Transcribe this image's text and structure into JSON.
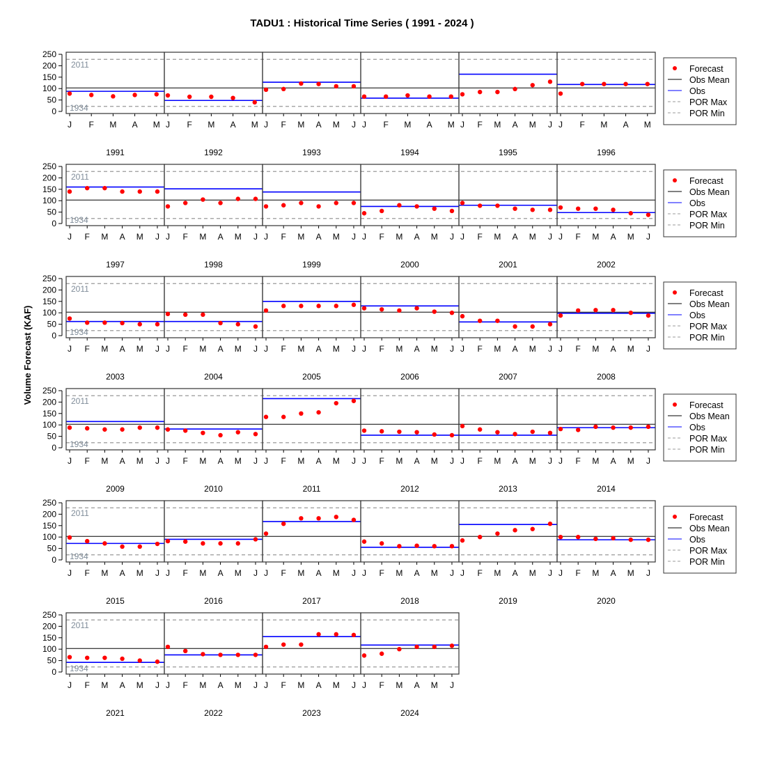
{
  "chart_data": {
    "type": "scatter",
    "title": "TADU1 : Historical Time Series ( 1991 - 2024 )",
    "ylabel": "Volume Forecast (KAF)",
    "xlabel": "",
    "ylim": [
      0,
      250
    ],
    "yticks": [
      0,
      50,
      100,
      150,
      200,
      250
    ],
    "obs_mean": 103,
    "por_max": 228,
    "por_min": 22,
    "por_max_label": "2011",
    "por_min_label": "1934",
    "colors": {
      "forecast": "#ff0000",
      "obs": "#0000ff",
      "obs_mean": "#000000",
      "por": "#999999"
    },
    "legend": {
      "placement": "right",
      "entries": [
        "Forecast",
        "Obs Mean",
        "Obs",
        "POR Max",
        "POR Min"
      ]
    },
    "years": [
      {
        "year": "1991",
        "months": [
          "J",
          "F",
          "M",
          "A",
          "M"
        ],
        "forecast": [
          78,
          72,
          66,
          72,
          75
        ],
        "obs": 88
      },
      {
        "year": "1992",
        "months": [
          "J",
          "F",
          "M",
          "A",
          "M"
        ],
        "forecast": [
          70,
          64,
          64,
          59,
          40
        ],
        "obs": 48
      },
      {
        "year": "1993",
        "months": [
          "J",
          "F",
          "M",
          "A",
          "M",
          "J"
        ],
        "forecast": [
          95,
          98,
          122,
          120,
          110,
          110
        ],
        "obs": 128
      },
      {
        "year": "1994",
        "months": [
          "J",
          "F",
          "M",
          "A",
          "M"
        ],
        "forecast": [
          65,
          65,
          70,
          65,
          65
        ],
        "obs": 58
      },
      {
        "year": "1995",
        "months": [
          "J",
          "F",
          "M",
          "A",
          "M",
          "J"
        ],
        "forecast": [
          75,
          85,
          85,
          98,
          115,
          130
        ],
        "obs": 163
      },
      {
        "year": "1996",
        "months": [
          "J",
          "F",
          "M",
          "A",
          "M"
        ],
        "forecast": [
          78,
          120,
          120,
          120,
          120
        ],
        "obs": 118
      },
      {
        "year": "1997",
        "months": [
          "J",
          "F",
          "M",
          "A",
          "M",
          "J"
        ],
        "forecast": [
          140,
          155,
          155,
          140,
          140,
          140
        ],
        "obs": 160
      },
      {
        "year": "1998",
        "months": [
          "J",
          "F",
          "M",
          "A",
          "M",
          "J"
        ],
        "forecast": [
          75,
          90,
          105,
          90,
          108,
          108
        ],
        "obs": 152
      },
      {
        "year": "1999",
        "months": [
          "J",
          "F",
          "M",
          "A",
          "M",
          "J"
        ],
        "forecast": [
          75,
          80,
          90,
          75,
          90,
          90
        ],
        "obs": 138
      },
      {
        "year": "2000",
        "months": [
          "J",
          "F",
          "M",
          "A",
          "M",
          "J"
        ],
        "forecast": [
          45,
          55,
          80,
          75,
          65,
          55
        ],
        "obs": 75
      },
      {
        "year": "2001",
        "months": [
          "J",
          "F",
          "M",
          "A",
          "M",
          "J"
        ],
        "forecast": [
          90,
          78,
          78,
          65,
          60,
          60
        ],
        "obs": 80
      },
      {
        "year": "2002",
        "months": [
          "J",
          "F",
          "M",
          "A",
          "M",
          "J"
        ],
        "forecast": [
          70,
          65,
          65,
          60,
          45,
          38
        ],
        "obs": 48
      },
      {
        "year": "2003",
        "months": [
          "J",
          "F",
          "M",
          "A",
          "M",
          "J"
        ],
        "forecast": [
          75,
          57,
          57,
          55,
          50,
          50
        ],
        "obs": 62
      },
      {
        "year": "2004",
        "months": [
          "J",
          "F",
          "M",
          "A",
          "M",
          "J"
        ],
        "forecast": [
          95,
          92,
          92,
          55,
          50,
          40
        ],
        "obs": 62
      },
      {
        "year": "2005",
        "months": [
          "J",
          "F",
          "M",
          "A",
          "M",
          "J"
        ],
        "forecast": [
          110,
          130,
          130,
          130,
          130,
          135
        ],
        "obs": 150
      },
      {
        "year": "2006",
        "months": [
          "J",
          "F",
          "M",
          "A",
          "M",
          "J"
        ],
        "forecast": [
          120,
          115,
          110,
          120,
          105,
          100
        ],
        "obs": 130
      },
      {
        "year": "2007",
        "months": [
          "J",
          "F",
          "M",
          "A",
          "M",
          "J"
        ],
        "forecast": [
          85,
          65,
          65,
          40,
          40,
          50
        ],
        "obs": 60
      },
      {
        "year": "2008",
        "months": [
          "J",
          "F",
          "M",
          "A",
          "M",
          "J"
        ],
        "forecast": [
          88,
          110,
          112,
          112,
          100,
          88
        ],
        "obs": 98
      },
      {
        "year": "2009",
        "months": [
          "J",
          "F",
          "M",
          "A",
          "M",
          "J"
        ],
        "forecast": [
          88,
          85,
          80,
          80,
          88,
          88
        ],
        "obs": 115
      },
      {
        "year": "2010",
        "months": [
          "J",
          "F",
          "M",
          "A",
          "M",
          "J"
        ],
        "forecast": [
          80,
          75,
          65,
          55,
          68,
          60
        ],
        "obs": 82
      },
      {
        "year": "2011",
        "months": [
          "J",
          "F",
          "M",
          "A",
          "M",
          "J"
        ],
        "forecast": [
          135,
          135,
          150,
          155,
          195,
          205
        ],
        "obs": 215
      },
      {
        "year": "2012",
        "months": [
          "J",
          "F",
          "M",
          "A",
          "M",
          "J"
        ],
        "forecast": [
          75,
          72,
          70,
          68,
          58,
          55
        ],
        "obs": 55
      },
      {
        "year": "2013",
        "months": [
          "J",
          "F",
          "M",
          "A",
          "M",
          "J"
        ],
        "forecast": [
          95,
          80,
          68,
          60,
          70,
          65
        ],
        "obs": 55
      },
      {
        "year": "2014",
        "months": [
          "J",
          "F",
          "M",
          "A",
          "M",
          "J"
        ],
        "forecast": [
          82,
          78,
          92,
          88,
          88,
          92
        ],
        "obs": 88
      },
      {
        "year": "2015",
        "months": [
          "J",
          "F",
          "M",
          "A",
          "M",
          "J"
        ],
        "forecast": [
          98,
          82,
          72,
          58,
          58,
          70
        ],
        "obs": 72
      },
      {
        "year": "2016",
        "months": [
          "J",
          "F",
          "M",
          "A",
          "M",
          "J"
        ],
        "forecast": [
          82,
          80,
          72,
          72,
          72,
          90
        ],
        "obs": 90
      },
      {
        "year": "2017",
        "months": [
          "J",
          "F",
          "M",
          "A",
          "M",
          "J"
        ],
        "forecast": [
          115,
          158,
          182,
          182,
          188,
          175
        ],
        "obs": 168
      },
      {
        "year": "2018",
        "months": [
          "J",
          "F",
          "M",
          "A",
          "M",
          "J"
        ],
        "forecast": [
          80,
          72,
          60,
          62,
          60,
          60
        ],
        "obs": 55
      },
      {
        "year": "2019",
        "months": [
          "J",
          "F",
          "M",
          "A",
          "M",
          "J"
        ],
        "forecast": [
          85,
          100,
          115,
          130,
          135,
          158
        ],
        "obs": 155
      },
      {
        "year": "2020",
        "months": [
          "J",
          "F",
          "M",
          "A",
          "M",
          "J"
        ],
        "forecast": [
          100,
          100,
          92,
          95,
          88,
          88
        ],
        "obs": 88
      },
      {
        "year": "2021",
        "months": [
          "J",
          "F",
          "M",
          "A",
          "M",
          "J"
        ],
        "forecast": [
          65,
          62,
          62,
          58,
          50,
          45
        ],
        "obs": 42
      },
      {
        "year": "2022",
        "months": [
          "J",
          "F",
          "M",
          "A",
          "M",
          "J"
        ],
        "forecast": [
          110,
          92,
          78,
          75,
          75,
          75
        ],
        "obs": 75
      },
      {
        "year": "2023",
        "months": [
          "J",
          "F",
          "M",
          "A",
          "M",
          "J"
        ],
        "forecast": [
          110,
          120,
          120,
          165,
          165,
          162
        ],
        "obs": 155
      },
      {
        "year": "2024",
        "months": [
          "J",
          "F",
          "M",
          "A",
          "M",
          "J"
        ],
        "forecast": [
          72,
          80,
          100,
          110,
          110,
          115
        ],
        "obs": 118
      }
    ]
  }
}
